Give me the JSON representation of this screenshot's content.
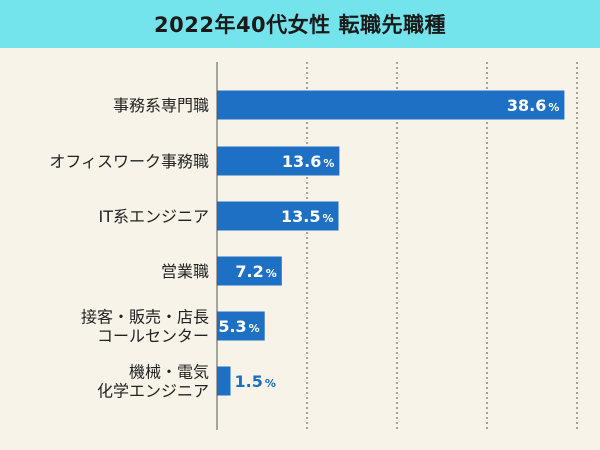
{
  "title": "2022年40代女性 転職先職種",
  "chart_data": {
    "type": "bar",
    "orientation": "horizontal",
    "title": "2022年40代女性 転職先職種",
    "categories": [
      [
        "事務系専門職"
      ],
      [
        "オフィスワーク事務職"
      ],
      [
        "IT系エンジニア"
      ],
      [
        "営業職"
      ],
      [
        "接客・販売・店長",
        "コールセンター"
      ],
      [
        "機械・電気",
        "化学エンジニア"
      ]
    ],
    "values": [
      38.6,
      13.6,
      13.5,
      7.2,
      5.3,
      1.5
    ],
    "unit": "%",
    "xlim": [
      0,
      40
    ],
    "grid": "vertical-dashed",
    "colors": {
      "bar": "#1e70c4",
      "title_bg": "#74e4ec",
      "background": "#f7f3e8",
      "grid": "#555555"
    }
  }
}
